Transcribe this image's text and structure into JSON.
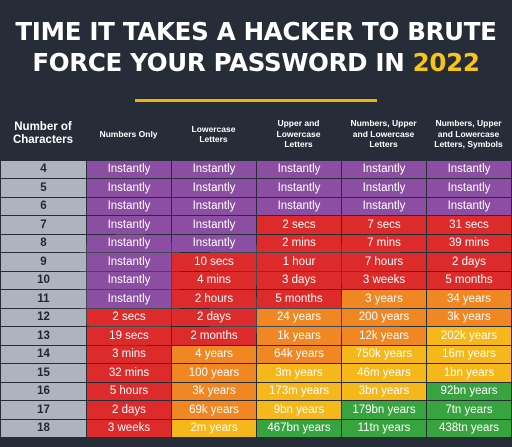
{
  "title": {
    "line1": "TIME IT TAKES A HACKER TO BRUTE",
    "line2_prefix": "FORCE YOUR PASSWORD IN ",
    "year": "2022"
  },
  "headers": {
    "first_line1": "Number of",
    "first_line2": "Characters",
    "columns": [
      [
        "Numbers Only"
      ],
      [
        "Lowercase",
        "Letters"
      ],
      [
        "Upper and",
        "Lowercase",
        "Letters"
      ],
      [
        "Numbers, Upper",
        "and Lowercase",
        "Letters"
      ],
      [
        "Numbers, Upper",
        "and Lowercase",
        "Letters, Symbols"
      ]
    ]
  },
  "colors": {
    "purple": "#8b4ea3",
    "red": "#dd2b2b",
    "orange": "#f18722",
    "yellow": "#f6b71b",
    "green": "#37a43f",
    "characters": "#adb4c0",
    "background": "#262d38",
    "accent": "#f5c518"
  },
  "rows": [
    {
      "chars": "4",
      "cells": [
        [
          "Instantly",
          "purple"
        ],
        [
          "Instantly",
          "purple"
        ],
        [
          "Instantly",
          "purple"
        ],
        [
          "Instantly",
          "purple"
        ],
        [
          "Instantly",
          "purple"
        ]
      ]
    },
    {
      "chars": "5",
      "cells": [
        [
          "Instantly",
          "purple"
        ],
        [
          "Instantly",
          "purple"
        ],
        [
          "Instantly",
          "purple"
        ],
        [
          "Instantly",
          "purple"
        ],
        [
          "Instantly",
          "purple"
        ]
      ]
    },
    {
      "chars": "6",
      "cells": [
        [
          "Instantly",
          "purple"
        ],
        [
          "Instantly",
          "purple"
        ],
        [
          "Instantly",
          "purple"
        ],
        [
          "Instantly",
          "purple"
        ],
        [
          "Instantly",
          "purple"
        ]
      ]
    },
    {
      "chars": "7",
      "cells": [
        [
          "Instantly",
          "purple"
        ],
        [
          "Instantly",
          "purple"
        ],
        [
          "2 secs",
          "red"
        ],
        [
          "7 secs",
          "red"
        ],
        [
          "31 secs",
          "red"
        ]
      ]
    },
    {
      "chars": "8",
      "cells": [
        [
          "Instantly",
          "purple"
        ],
        [
          "Instantly",
          "purple"
        ],
        [
          "2 mins",
          "red"
        ],
        [
          "7 mins",
          "red"
        ],
        [
          "39 mins",
          "red"
        ]
      ]
    },
    {
      "chars": "9",
      "cells": [
        [
          "Instantly",
          "purple"
        ],
        [
          "10 secs",
          "red"
        ],
        [
          "1 hour",
          "red"
        ],
        [
          "7 hours",
          "red"
        ],
        [
          "2 days",
          "red"
        ]
      ]
    },
    {
      "chars": "10",
      "cells": [
        [
          "Instantly",
          "purple"
        ],
        [
          "4 mins",
          "red"
        ],
        [
          "3 days",
          "red"
        ],
        [
          "3 weeks",
          "red"
        ],
        [
          "5 months",
          "red"
        ]
      ]
    },
    {
      "chars": "11",
      "cells": [
        [
          "Instantly",
          "purple"
        ],
        [
          "2 hours",
          "red"
        ],
        [
          "5 months",
          "red"
        ],
        [
          "3 years",
          "orange"
        ],
        [
          "34 years",
          "orange"
        ]
      ]
    },
    {
      "chars": "12",
      "cells": [
        [
          "2 secs",
          "red"
        ],
        [
          "2 days",
          "red"
        ],
        [
          "24 years",
          "orange"
        ],
        [
          "200 years",
          "orange"
        ],
        [
          "3k years",
          "orange"
        ]
      ]
    },
    {
      "chars": "13",
      "cells": [
        [
          "19 secs",
          "red"
        ],
        [
          "2 months",
          "red"
        ],
        [
          "1k years",
          "orange"
        ],
        [
          "12k years",
          "orange"
        ],
        [
          "202k years",
          "yellow"
        ]
      ]
    },
    {
      "chars": "14",
      "cells": [
        [
          "3 mins",
          "red"
        ],
        [
          "4 years",
          "orange"
        ],
        [
          "64k years",
          "orange"
        ],
        [
          "750k years",
          "yellow"
        ],
        [
          "16m years",
          "yellow"
        ]
      ]
    },
    {
      "chars": "15",
      "cells": [
        [
          "32 mins",
          "red"
        ],
        [
          "100 years",
          "orange"
        ],
        [
          "3m years",
          "yellow"
        ],
        [
          "46m years",
          "yellow"
        ],
        [
          "1bn years",
          "yellow"
        ]
      ]
    },
    {
      "chars": "16",
      "cells": [
        [
          "5 hours",
          "red"
        ],
        [
          "3k years",
          "orange"
        ],
        [
          "173m years",
          "yellow"
        ],
        [
          "3bn years",
          "yellow"
        ],
        [
          "92bn years",
          "green"
        ]
      ]
    },
    {
      "chars": "17",
      "cells": [
        [
          "2 days",
          "red"
        ],
        [
          "69k years",
          "orange"
        ],
        [
          "9bn years",
          "yellow"
        ],
        [
          "179bn years",
          "green"
        ],
        [
          "7tn years",
          "green"
        ]
      ]
    },
    {
      "chars": "18",
      "cells": [
        [
          "3 weeks",
          "red"
        ],
        [
          "2m years",
          "yellow"
        ],
        [
          "467bn years",
          "green"
        ],
        [
          "11tn years",
          "green"
        ],
        [
          "438tn years",
          "green"
        ]
      ]
    }
  ]
}
